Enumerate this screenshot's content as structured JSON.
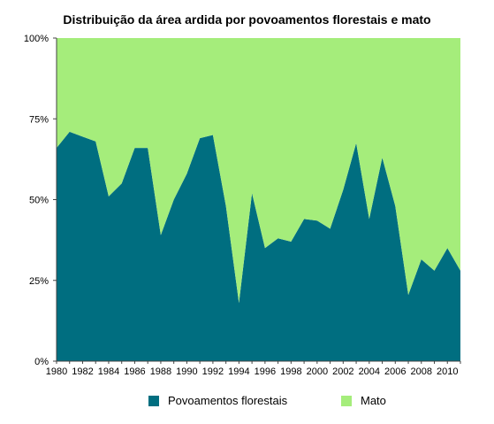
{
  "chart_data": {
    "type": "area",
    "stacked": true,
    "percent": true,
    "title": "Distribuição da área ardida por povoamentos florestais e mato",
    "xlabel": "",
    "ylabel": "",
    "x": [
      1980,
      1981,
      1982,
      1983,
      1984,
      1985,
      1986,
      1987,
      1988,
      1989,
      1990,
      1991,
      1992,
      1993,
      1994,
      1995,
      1996,
      1997,
      1998,
      1999,
      2000,
      2001,
      2002,
      2003,
      2004,
      2005,
      2006,
      2007,
      2008,
      2009,
      2010,
      2011
    ],
    "x_ticks": [
      "1980",
      "1982",
      "1984",
      "1986",
      "1988",
      "1990",
      "1992",
      "1994",
      "1996",
      "1998",
      "2000",
      "2002",
      "2004",
      "2006",
      "2008",
      "2010"
    ],
    "y_ticks": [
      "0%",
      "25%",
      "50%",
      "75%",
      "100%"
    ],
    "ylim": [
      0,
      100
    ],
    "series": [
      {
        "name": "Povoamentos florestais",
        "color": "#006e80",
        "values": [
          66,
          71,
          69.5,
          68,
          51,
          55,
          66,
          66,
          39,
          50,
          58,
          69,
          70,
          48,
          18,
          52,
          35,
          38,
          37,
          44,
          43.5,
          41,
          53,
          67.5,
          44,
          63,
          48,
          20.5,
          31.5,
          28,
          35,
          28
        ]
      },
      {
        "name": "Mato",
        "color": "#a5ed7b",
        "values": [
          34,
          29,
          30.5,
          32,
          49,
          45,
          34,
          34,
          61,
          50,
          42,
          31,
          30,
          52,
          82,
          48,
          65,
          62,
          63,
          56,
          56.5,
          59,
          47,
          32.5,
          56,
          37,
          52,
          79.5,
          68.5,
          72,
          65,
          72
        ]
      }
    ],
    "legend_position": "bottom",
    "grid": false
  }
}
